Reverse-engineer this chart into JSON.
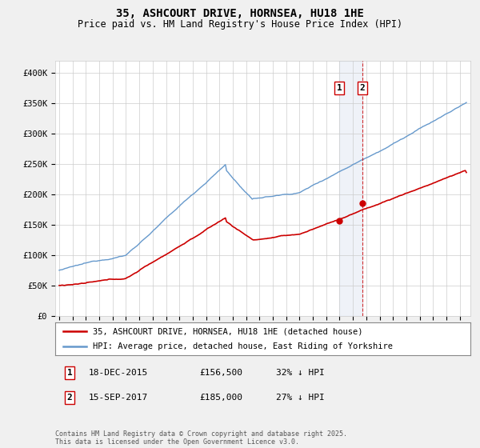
{
  "title": "35, ASHCOURT DRIVE, HORNSEA, HU18 1HE",
  "subtitle": "Price paid vs. HM Land Registry's House Price Index (HPI)",
  "ylabel_ticks": [
    "£0",
    "£50K",
    "£100K",
    "£150K",
    "£200K",
    "£250K",
    "£300K",
    "£350K",
    "£400K"
  ],
  "ytick_values": [
    0,
    50000,
    100000,
    150000,
    200000,
    250000,
    300000,
    350000,
    400000
  ],
  "ylim": [
    0,
    420000
  ],
  "xlim_left": 1994.7,
  "xlim_right": 2025.8,
  "hpi_color": "#6699cc",
  "price_color": "#cc0000",
  "marker1_date_x": 2015.97,
  "marker2_date_x": 2017.71,
  "marker1_price": 156500,
  "marker2_price": 185000,
  "vline_color": "#cc0000",
  "shade_color": "#aabbdd",
  "legend_entry1": "35, ASHCOURT DRIVE, HORNSEA, HU18 1HE (detached house)",
  "legend_entry2": "HPI: Average price, detached house, East Riding of Yorkshire",
  "table_row1": [
    "1",
    "18-DEC-2015",
    "£156,500",
    "32% ↓ HPI"
  ],
  "table_row2": [
    "2",
    "15-SEP-2017",
    "£185,000",
    "27% ↓ HPI"
  ],
  "footer": "Contains HM Land Registry data © Crown copyright and database right 2025.\nThis data is licensed under the Open Government Licence v3.0.",
  "bg_color": "#f0f0f0",
  "plot_bg_color": "#ffffff",
  "grid_color": "#cccccc"
}
